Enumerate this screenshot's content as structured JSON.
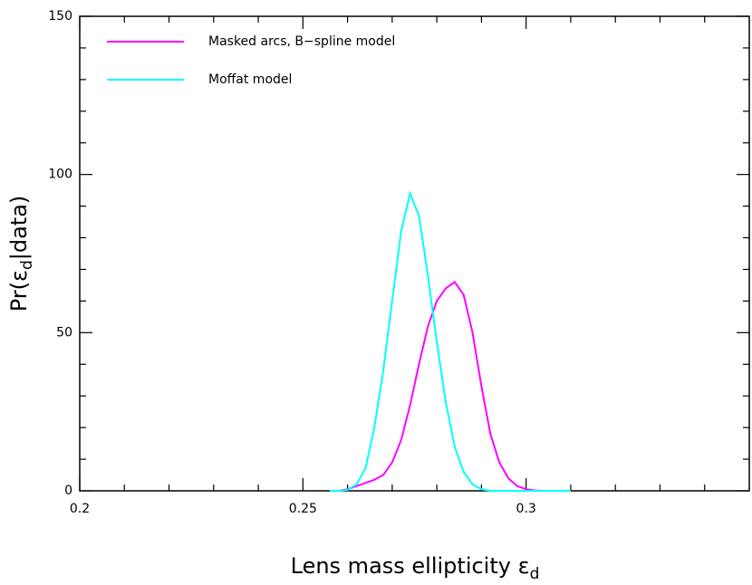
{
  "chart_data": {
    "type": "line",
    "xlabel": {
      "text": "Lens mass ellipticity ε",
      "sub": "d"
    },
    "ylabel": {
      "parts": [
        "Pr(ε",
        "d",
        "|data)"
      ]
    },
    "x": [
      0.256,
      0.258,
      0.26,
      0.262,
      0.264,
      0.266,
      0.268,
      0.27,
      0.272,
      0.274,
      0.276,
      0.278,
      0.28,
      0.282,
      0.284,
      0.286,
      0.288,
      0.29,
      0.292,
      0.294,
      0.296,
      0.298,
      0.3,
      0.302,
      0.304,
      0.306,
      0.308,
      0.31
    ],
    "series": [
      {
        "name": "Masked arcs, B−spline model",
        "color": "#ff00ff",
        "values": [
          0,
          0,
          0.5,
          1.5,
          2.5,
          3.5,
          5,
          9,
          16,
          27,
          40,
          52,
          60,
          64,
          66,
          62,
          50,
          33,
          18,
          9,
          4,
          1.5,
          0.5,
          0.1,
          0,
          0,
          0,
          0
        ]
      },
      {
        "name": "Moffat model",
        "color": "#00ffff",
        "values": [
          0,
          0,
          0.3,
          2,
          7,
          20,
          38,
          60,
          82,
          94,
          87,
          68,
          47,
          28,
          14,
          6,
          2,
          0.5,
          0,
          0,
          0,
          0,
          0,
          0,
          0,
          0,
          0,
          0
        ]
      }
    ],
    "xlim": [
      0.2,
      0.35
    ],
    "ylim": [
      0,
      150
    ],
    "xticks": [
      0.2,
      0.25,
      0.3
    ],
    "yticks": [
      0,
      50,
      100,
      150
    ],
    "xminorticks": [
      0.21,
      0.22,
      0.23,
      0.24,
      0.26,
      0.27,
      0.28,
      0.29,
      0.31,
      0.32,
      0.33,
      0.34
    ],
    "yminorticks": [
      10,
      20,
      30,
      40,
      60,
      70,
      80,
      90,
      110,
      120,
      130,
      140
    ],
    "legend": "upper left"
  }
}
